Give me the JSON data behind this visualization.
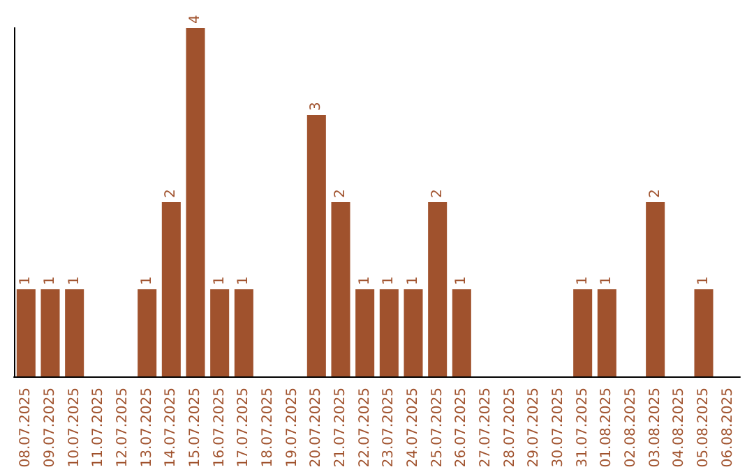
{
  "chart_data": {
    "type": "bar",
    "categories": [
      "08.07.2025",
      "09.07.2025",
      "10.07.2025",
      "11.07.2025",
      "12.07.2025",
      "13.07.2025",
      "14.07.2025",
      "15.07.2025",
      "16.07.2025",
      "17.07.2025",
      "18.07.2025",
      "19.07.2025",
      "20.07.2025",
      "21.07.2025",
      "22.07.2025",
      "23.07.2025",
      "24.07.2025",
      "25.07.2025",
      "26.07.2025",
      "27.07.2025",
      "28.07.2025",
      "29.07.2025",
      "30.07.2025",
      "31.07.2025",
      "01.08.2025",
      "02.08.2025",
      "03.08.2025",
      "04.08.2025",
      "05.08.2025",
      "06.08.2025"
    ],
    "values": [
      1,
      1,
      1,
      0,
      0,
      1,
      2,
      4,
      1,
      1,
      0,
      0,
      3,
      2,
      1,
      1,
      1,
      2,
      1,
      0,
      0,
      0,
      0,
      1,
      1,
      0,
      2,
      0,
      1,
      0
    ],
    "value_labels": [
      "1",
      "1",
      "1",
      null,
      null,
      "1",
      "2",
      "4",
      "1",
      "1",
      null,
      null,
      "3",
      "2",
      "1",
      "1",
      "1",
      "2",
      "1",
      null,
      null,
      null,
      null,
      "1",
      "1",
      null,
      "2",
      null,
      "1",
      null
    ],
    "color": "#a0522d",
    "grid": false,
    "tick_labels": "x"
  }
}
